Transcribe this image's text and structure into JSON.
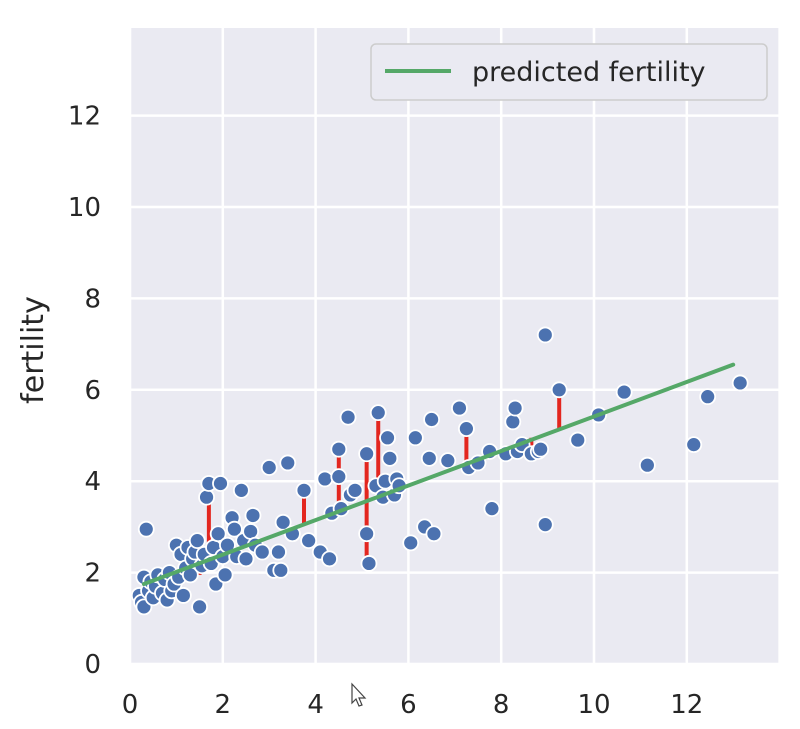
{
  "chart_data": {
    "type": "scatter",
    "title": "",
    "xlabel": "",
    "ylabel": "fertility",
    "xlim": [
      0,
      14
    ],
    "ylim": [
      0,
      14
    ],
    "xticks": [
      "0",
      "2",
      "4",
      "6",
      "8",
      "10",
      "12"
    ],
    "yticks": [
      "0",
      "2",
      "4",
      "6",
      "8",
      "10",
      "12"
    ],
    "grid": true,
    "legend": {
      "placement": "top-right",
      "entries": [
        "predicted fertility"
      ]
    },
    "colors": {
      "points": "#4c72b0",
      "line": "#55a868",
      "residuals": "#e3261f",
      "background": "#eaeaf2",
      "grid": "#ffffff"
    },
    "regression_line": {
      "name": "predicted fertility",
      "x": [
        0.3,
        13.0
      ],
      "y": [
        1.75,
        6.55
      ]
    },
    "series": [
      {
        "kind": "points",
        "points": [
          [
            0.2,
            1.5
          ],
          [
            0.25,
            1.35
          ],
          [
            0.3,
            1.9
          ],
          [
            0.3,
            1.25
          ],
          [
            0.35,
            2.95
          ],
          [
            0.4,
            1.6
          ],
          [
            0.45,
            1.8
          ],
          [
            0.5,
            1.45
          ],
          [
            0.55,
            1.7
          ],
          [
            0.6,
            1.95
          ],
          [
            0.7,
            1.55
          ],
          [
            0.75,
            1.85
          ],
          [
            0.8,
            1.4
          ],
          [
            0.85,
            2.0
          ],
          [
            0.9,
            1.6
          ],
          [
            0.95,
            1.75
          ],
          [
            1.0,
            2.6
          ],
          [
            1.05,
            1.9
          ],
          [
            1.1,
            2.4
          ],
          [
            1.15,
            1.5
          ],
          [
            1.2,
            2.1
          ],
          [
            1.25,
            2.55
          ],
          [
            1.3,
            1.95
          ],
          [
            1.35,
            2.3
          ],
          [
            1.4,
            2.45
          ],
          [
            1.45,
            2.7
          ],
          [
            1.5,
            1.25
          ],
          [
            1.55,
            2.15
          ],
          [
            1.6,
            2.4
          ],
          [
            1.65,
            3.65
          ],
          [
            1.7,
            3.95
          ],
          [
            1.75,
            2.2
          ],
          [
            1.8,
            2.55
          ],
          [
            1.85,
            1.75
          ],
          [
            1.9,
            2.85
          ],
          [
            1.95,
            3.95
          ],
          [
            2.0,
            2.35
          ],
          [
            2.05,
            1.95
          ],
          [
            2.1,
            2.6
          ],
          [
            2.2,
            3.2
          ],
          [
            2.25,
            2.95
          ],
          [
            2.3,
            2.35
          ],
          [
            2.4,
            3.8
          ],
          [
            2.45,
            2.7
          ],
          [
            2.5,
            2.3
          ],
          [
            2.6,
            2.9
          ],
          [
            2.65,
            3.25
          ],
          [
            2.7,
            2.6
          ],
          [
            2.85,
            2.45
          ],
          [
            3.0,
            4.3
          ],
          [
            3.1,
            2.05
          ],
          [
            3.2,
            2.45
          ],
          [
            3.25,
            2.05
          ],
          [
            3.3,
            3.1
          ],
          [
            3.4,
            4.4
          ],
          [
            3.5,
            2.85
          ],
          [
            3.75,
            3.8
          ],
          [
            3.85,
            2.7
          ],
          [
            4.1,
            2.45
          ],
          [
            4.2,
            4.05
          ],
          [
            4.3,
            2.3
          ],
          [
            4.35,
            3.3
          ],
          [
            4.5,
            4.1
          ],
          [
            4.5,
            4.7
          ],
          [
            4.55,
            3.4
          ],
          [
            4.7,
            5.4
          ],
          [
            4.75,
            3.7
          ],
          [
            4.85,
            3.8
          ],
          [
            5.1,
            4.6
          ],
          [
            5.1,
            2.85
          ],
          [
            5.15,
            2.2
          ],
          [
            5.3,
            3.9
          ],
          [
            5.35,
            5.5
          ],
          [
            5.45,
            3.65
          ],
          [
            5.5,
            4.0
          ],
          [
            5.55,
            4.95
          ],
          [
            5.6,
            4.5
          ],
          [
            5.7,
            3.7
          ],
          [
            5.75,
            4.05
          ],
          [
            5.8,
            3.9
          ],
          [
            6.05,
            2.65
          ],
          [
            6.15,
            4.95
          ],
          [
            6.35,
            3.0
          ],
          [
            6.45,
            4.5
          ],
          [
            6.5,
            5.35
          ],
          [
            6.55,
            2.85
          ],
          [
            6.85,
            4.45
          ],
          [
            7.1,
            5.6
          ],
          [
            7.25,
            5.15
          ],
          [
            7.3,
            4.3
          ],
          [
            7.5,
            4.4
          ],
          [
            7.75,
            4.65
          ],
          [
            7.8,
            3.4
          ],
          [
            8.1,
            4.6
          ],
          [
            8.25,
            5.3
          ],
          [
            8.3,
            5.6
          ],
          [
            8.35,
            4.65
          ],
          [
            8.45,
            4.8
          ],
          [
            8.65,
            4.6
          ],
          [
            8.8,
            4.65
          ],
          [
            8.85,
            4.7
          ],
          [
            8.95,
            3.05
          ],
          [
            8.95,
            7.2
          ],
          [
            9.25,
            6.0
          ],
          [
            9.65,
            4.9
          ],
          [
            10.1,
            5.45
          ],
          [
            10.65,
            5.95
          ],
          [
            11.15,
            4.35
          ],
          [
            12.15,
            4.8
          ],
          [
            12.45,
            5.85
          ],
          [
            13.15,
            6.15
          ]
        ]
      },
      {
        "kind": "residuals",
        "segments": [
          [
            0.35,
            1.3,
            1.9
          ],
          [
            0.6,
            1.55,
            1.95
          ],
          [
            0.85,
            1.6,
            2.0
          ],
          [
            1.5,
            1.95,
            2.15
          ],
          [
            1.7,
            2.2,
            3.95
          ],
          [
            3.75,
            3.05,
            3.8
          ],
          [
            4.5,
            3.4,
            4.7
          ],
          [
            5.1,
            2.2,
            4.6
          ],
          [
            5.35,
            3.6,
            5.5
          ],
          [
            7.25,
            4.4,
            5.15
          ],
          [
            8.65,
            4.6,
            4.95
          ],
          [
            9.25,
            5.15,
            6.0
          ]
        ]
      }
    ]
  }
}
